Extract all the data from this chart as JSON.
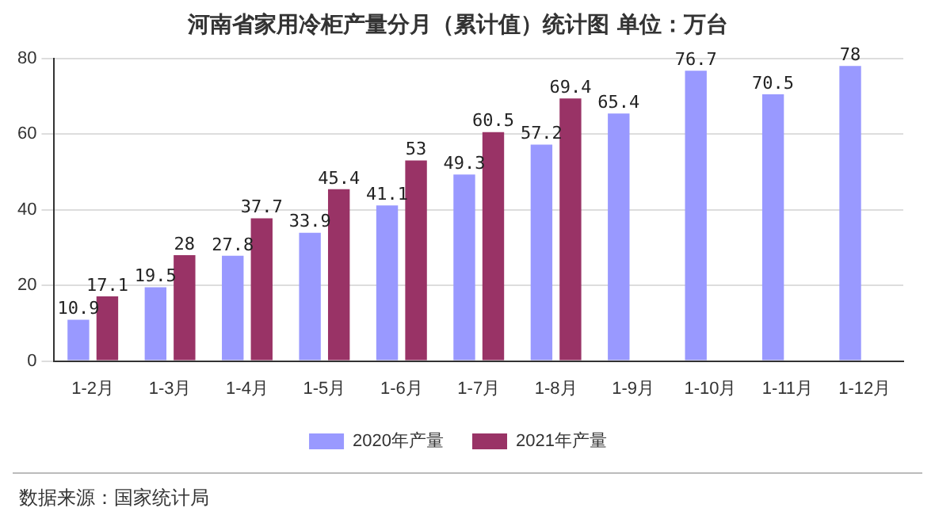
{
  "chart_data": {
    "type": "bar",
    "title": "河南省家用冷柜产量分月（累计值）统计图 单位：万台",
    "categories": [
      "1-2月",
      "1-3月",
      "1-4月",
      "1-5月",
      "1-6月",
      "1-7月",
      "1-8月",
      "1-9月",
      "1-10月",
      "1-11月",
      "1-12月"
    ],
    "series": [
      {
        "name": "2020年产量",
        "color": "#9999ff",
        "values": [
          10.9,
          19.5,
          27.8,
          33.9,
          41.1,
          49.3,
          57.2,
          65.4,
          76.7,
          70.5,
          78
        ]
      },
      {
        "name": "2021年产量",
        "color": "#993366",
        "values": [
          17.1,
          28,
          37.7,
          45.4,
          53,
          60.5,
          69.4,
          null,
          null,
          null,
          null
        ]
      }
    ],
    "ylim": [
      0,
      80
    ],
    "yticks": [
      0,
      20,
      40,
      60,
      80
    ],
    "grid": "y",
    "legend": "bottom",
    "data_labels": true,
    "annotations": [
      "数据来源：国家统计局"
    ]
  }
}
